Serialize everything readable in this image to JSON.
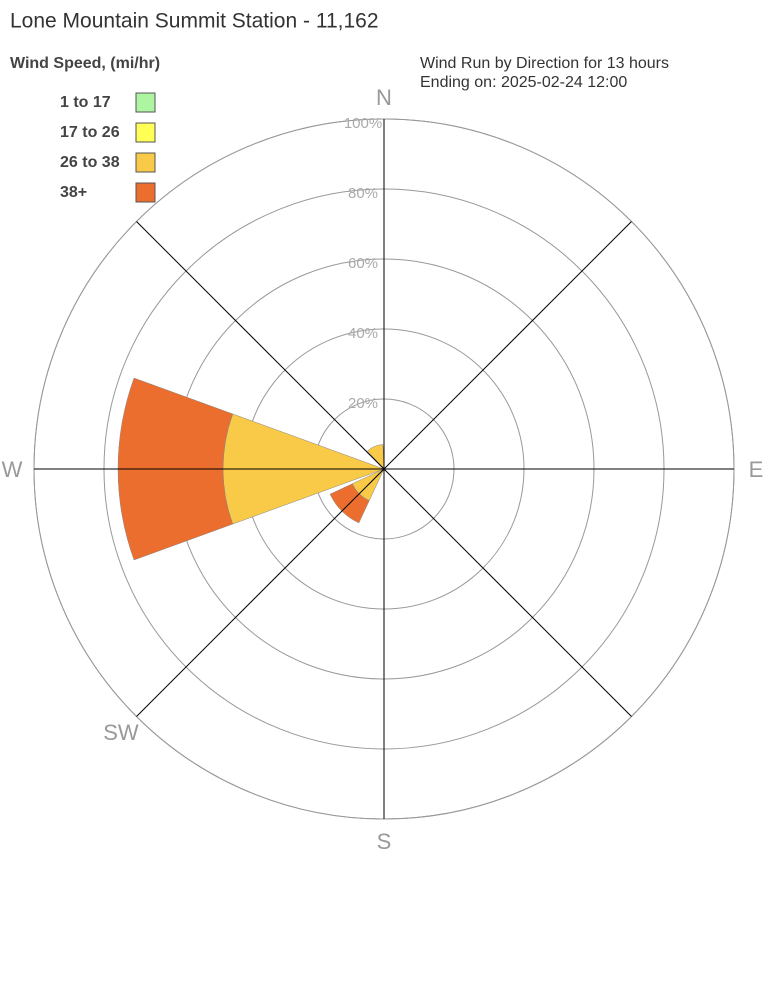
{
  "chart_data": {
    "type": "wind-rose",
    "title": "Lone Mountain Summit Station - 11,162",
    "legend_title": "Wind Speed, (mi/hr)",
    "subtitle": [
      "Wind Run by Direction for 13 hours",
      "Ending on: 2025-02-24 12:00"
    ],
    "categories": [
      "N",
      null,
      null,
      null,
      "E",
      null,
      null,
      null,
      "S",
      null,
      "SW",
      null,
      "W",
      null,
      null,
      null
    ],
    "series": [
      {
        "name": "1 to 17",
        "color": "#aef5a2",
        "values": [
          0,
          0,
          0,
          0,
          0,
          0,
          0,
          0,
          0,
          0,
          0,
          0,
          0,
          0,
          0,
          0
        ]
      },
      {
        "name": "17 to 26",
        "color": "#ffff55",
        "values": [
          0,
          0,
          0,
          0,
          0,
          0,
          0,
          0,
          0,
          0,
          0,
          0,
          0,
          0,
          0,
          0
        ]
      },
      {
        "name": "26 to 38",
        "color": "#f8ca48",
        "values": [
          0,
          0,
          0,
          0,
          0,
          0,
          0,
          0,
          0,
          0,
          10,
          0,
          46,
          0,
          0,
          7
        ]
      },
      {
        "name": "38+",
        "color": "#ec6e2e",
        "values": [
          0,
          0,
          0,
          0,
          0,
          0,
          0,
          0,
          0,
          0,
          7,
          0,
          30,
          0,
          0,
          0
        ]
      }
    ],
    "rlim": [
      0,
      100
    ],
    "rticks": [
      {
        "value": 20,
        "label": "20%"
      },
      {
        "value": 40,
        "label": "40%"
      },
      {
        "value": 60,
        "label": "60%"
      },
      {
        "value": 80,
        "label": "80%"
      },
      {
        "value": 100,
        "label": "100%"
      }
    ]
  }
}
